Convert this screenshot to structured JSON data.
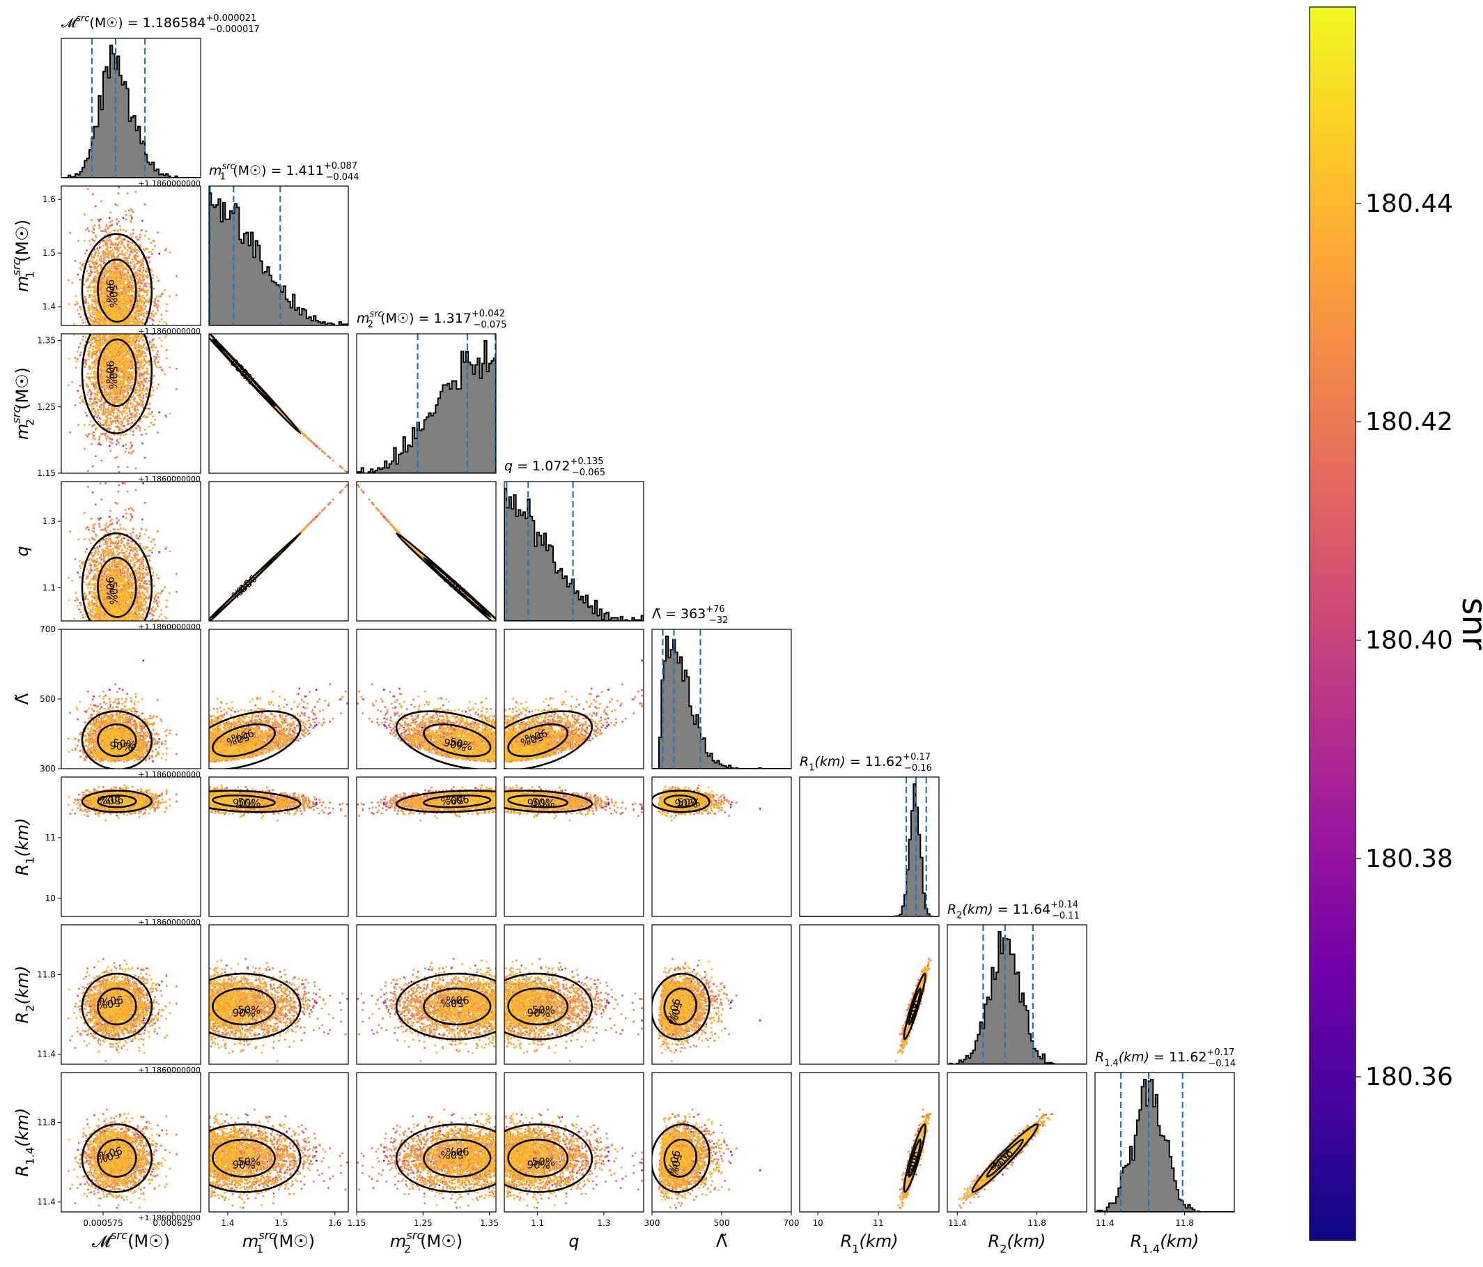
{
  "chart_data": {
    "type": "corner",
    "parameters": [
      {
        "key": "mc",
        "label_main": "𝓜",
        "label_sup": "src",
        "label_sub": "",
        "label_unit": "(M☉)",
        "title_value": "1.186584",
        "title_plus": "+0.000021",
        "title_minus": "−0.000017",
        "range": [
          1.186545,
          1.186645
        ],
        "ticks": [
          1.186575,
          1.186625
        ],
        "tick_labels": [
          "0.000575",
          "0.000625"
        ],
        "offset_text": "+1.1860000000",
        "median": 1.186584,
        "q_low": 1.186567,
        "q_high": 1.186605
      },
      {
        "key": "m1",
        "label_main": "m",
        "label_sup": "src",
        "label_sub": "1",
        "label_unit": "(M☉)",
        "title_value": "1.411",
        "title_plus": "+0.087",
        "title_minus": "−0.044",
        "range": [
          1.365,
          1.625
        ],
        "ticks": [
          1.4,
          1.5,
          1.6
        ],
        "tick_labels": [
          "1.4",
          "1.5",
          "1.6"
        ],
        "offset_text": "",
        "median": 1.411,
        "q_low": 1.367,
        "q_high": 1.498
      },
      {
        "key": "m2",
        "label_main": "m",
        "label_sup": "src",
        "label_sub": "2",
        "label_unit": "(M☉)",
        "title_value": "1.317",
        "title_plus": "+0.042",
        "title_minus": "−0.075",
        "range": [
          1.15,
          1.36
        ],
        "ticks": [
          1.15,
          1.25,
          1.35
        ],
        "tick_labels": [
          "1.15",
          "1.25",
          "1.35"
        ],
        "offset_text": "",
        "median": 1.317,
        "q_low": 1.242,
        "q_high": 1.359
      },
      {
        "key": "q",
        "label_main": "q",
        "label_sup": "",
        "label_sub": "",
        "label_unit": "",
        "title_value": "1.072",
        "title_plus": "+0.135",
        "title_minus": "−0.065",
        "range": [
          1.0,
          1.42
        ],
        "ticks": [
          1.1,
          1.3
        ],
        "tick_labels": [
          "1.1",
          "1.3"
        ],
        "offset_text": "",
        "median": 1.072,
        "q_low": 1.007,
        "q_high": 1.207
      },
      {
        "key": "lam",
        "label_main": "Λ̃",
        "label_sup": "",
        "label_sub": "",
        "label_unit": "",
        "title_value": "363",
        "title_plus": "+76",
        "title_minus": "−32",
        "range": [
          300,
          700
        ],
        "ticks": [
          300,
          500,
          700
        ],
        "tick_labels": [
          "300",
          "500",
          "700"
        ],
        "offset_text": "",
        "median": 363,
        "q_low": 331,
        "q_high": 439
      },
      {
        "key": "r1",
        "label_main": "R",
        "label_sup": "",
        "label_sub": "1",
        "label_unit": "(km)",
        "title_value": "11.62",
        "title_plus": "+0.17",
        "title_minus": "−0.16",
        "range": [
          9.7,
          12.0
        ],
        "ticks": [
          10,
          11
        ],
        "tick_labels": [
          "10",
          "11"
        ],
        "offset_text": "",
        "median": 11.62,
        "q_low": 11.46,
        "q_high": 11.79
      },
      {
        "key": "r2",
        "label_main": "R",
        "label_sup": "",
        "label_sub": "2",
        "label_unit": "(km)",
        "title_value": "11.64",
        "title_plus": "+0.14",
        "title_minus": "−0.11",
        "range": [
          11.35,
          12.05
        ],
        "ticks": [
          11.4,
          11.8
        ],
        "tick_labels": [
          "11.4",
          "11.8"
        ],
        "offset_text": "",
        "median": 11.64,
        "q_low": 11.53,
        "q_high": 11.78
      },
      {
        "key": "r14",
        "label_main": "R",
        "label_sup": "",
        "label_sub": "1.4",
        "label_unit": "(km)",
        "title_value": "11.62",
        "title_plus": "+0.17",
        "title_minus": "−0.14",
        "range": [
          11.35,
          12.05
        ],
        "ticks": [
          11.4,
          11.8
        ],
        "tick_labels": [
          "11.4",
          "11.8"
        ],
        "offset_text": "",
        "median": 11.62,
        "q_low": 11.48,
        "q_high": 11.79
      }
    ],
    "title_format": "{label} = {value}",
    "contour_labels": [
      "50%",
      "90%"
    ],
    "histogram_style": {
      "fill": "#808080",
      "edge": "#000000"
    },
    "quantile_line_color": "#1f77b4",
    "colorbar": {
      "label": "snr",
      "cmap": "plasma",
      "range": [
        180.345,
        180.458
      ],
      "ticks": [
        180.36,
        180.38,
        180.4,
        180.42,
        180.44
      ],
      "tick_labels": [
        "180.36",
        "180.38",
        "180.40",
        "180.42",
        "180.44"
      ]
    }
  }
}
